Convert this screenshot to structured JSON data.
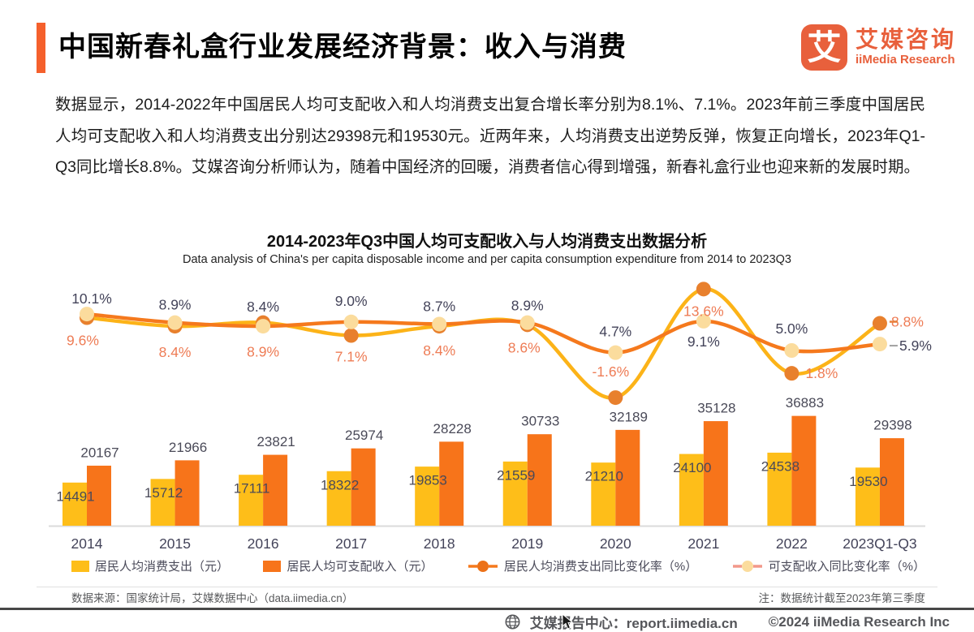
{
  "header": {
    "title": "中国新春礼盒行业发展经济背景：收入与消费",
    "logo": {
      "glyph": "艾",
      "name_cn": "艾媒咨询",
      "name_en": "iiMedia Research"
    }
  },
  "intro": "数据显示，2014-2022年中国居民人均可支配收入和人均消费支出复合增长率分别为8.1%、7.1%。2023年前三季度中国居民人均可支配收入和人均消费支出分别达29398元和19530元。近两年来，人均消费支出逆势反弹，恢复正向增长，2023年Q1-Q3同比增长8.8%。艾媒咨询分析师认为，随着中国经济的回暖，消费者信心得到增强，新春礼盒行业也迎来新的发展时期。",
  "chart": {
    "title": "2014-2023年Q3中国人均可支配收入与人均消费支出数据分析",
    "subtitle": "Data analysis of China's per capita disposable income and per capita consumption expenditure from 2014 to 2023Q3"
  },
  "chart_data": {
    "type": "bar+line",
    "categories": [
      "2014",
      "2015",
      "2016",
      "2017",
      "2018",
      "2019",
      "2020",
      "2021",
      "2022",
      "2023Q1-Q3"
    ],
    "series": [
      {
        "name": "居民人均消费支出（元）",
        "type": "bar",
        "color": "#FEBE19",
        "values": [
          14491,
          15712,
          17111,
          18322,
          19853,
          21559,
          21210,
          24100,
          24538,
          19530
        ]
      },
      {
        "name": "居民人均可支配收入（元）",
        "type": "bar",
        "color": "#F7741A",
        "values": [
          20167,
          21966,
          23821,
          25974,
          28228,
          30733,
          32189,
          35128,
          36883,
          29398
        ]
      },
      {
        "name": "居民人均消费支出同比变化率（%）",
        "type": "line",
        "line_color": "#FCB318",
        "dot_color": "#E8802D",
        "label_color": "#EE7C55",
        "legend_line_color": "#F5791D",
        "legend_dot_color": "#EC7118",
        "values": [
          9.6,
          8.4,
          8.9,
          7.1,
          8.4,
          8.6,
          -1.6,
          13.6,
          1.8,
          8.8
        ],
        "labels": [
          "9.6%",
          "8.4%",
          "8.9%",
          "7.1%",
          "8.4%",
          "8.6%",
          "-1.6%",
          "13.6%",
          "1.8%",
          "8.8%"
        ]
      },
      {
        "name": "可支配收入同比变化率（%）",
        "type": "line",
        "line_color": "#F5791D",
        "dot_color": "#FBDC9D",
        "label_color": "#44445A",
        "legend_line_color": "#F2998A",
        "legend_dot_color": "#FBDC9D",
        "values": [
          10.1,
          8.9,
          8.4,
          9.0,
          8.7,
          8.9,
          4.7,
          9.1,
          5.0,
          5.9
        ],
        "labels": [
          "10.1%",
          "8.9%",
          "8.4%",
          "9.0%",
          "8.7%",
          "8.9%",
          "4.7%",
          "9.1%",
          "5.0%",
          "5.9%"
        ]
      }
    ],
    "axis_text_color": "#44445A",
    "value_label_color": "#4A4A58",
    "legend_position": "bottom",
    "grid": false
  },
  "footer": {
    "source": "数据来源：国家统计局，艾媒数据中心（data.iimedia.cn）",
    "note": "注：数据统计截至2023年第三季度",
    "report_center": "艾媒报告中心：report.iimedia.cn",
    "copyright": "©2024 iiMedia Research Inc"
  }
}
